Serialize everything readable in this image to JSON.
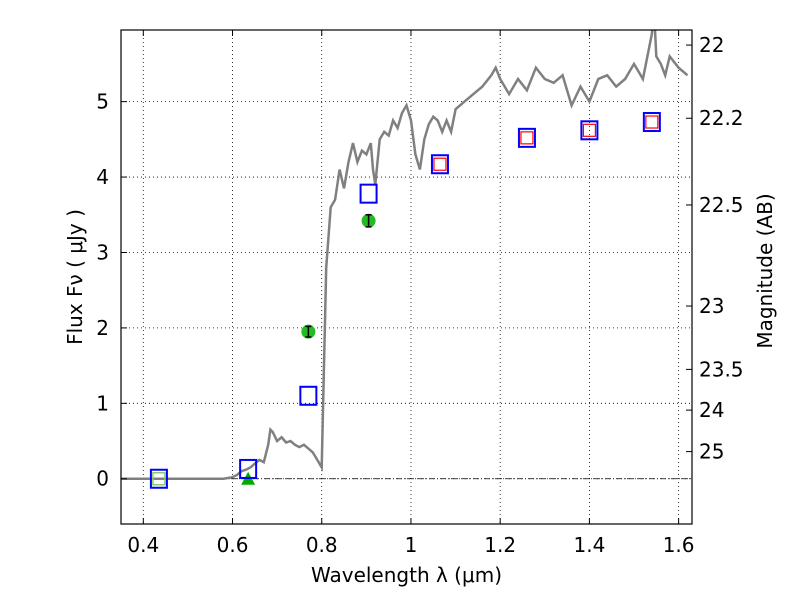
{
  "chart_data": {
    "type": "scatter",
    "xlabel": "Wavelength  λ (μm)",
    "ylabel_left": "Flux  Fν  ( μJy )",
    "ylabel_right": "Magnitude (AB)",
    "xlim": [
      0.35,
      1.63
    ],
    "ylim": [
      -0.6,
      5.95
    ],
    "grid": true,
    "x_ticks": [
      0.4,
      0.6,
      0.8,
      1.0,
      1.2,
      1.4,
      1.6
    ],
    "x_tick_labels": [
      "0.4",
      "0.6",
      "0.8",
      "1",
      "1.2",
      "1.4",
      "1.6"
    ],
    "y_ticks": [
      0,
      1,
      2,
      3,
      4,
      5
    ],
    "y_tick_labels": [
      "0",
      "1",
      "2",
      "3",
      "4",
      "5"
    ],
    "right_ticks": [
      {
        "label": "22",
        "flux": 5.75
      },
      {
        "label": "22.2",
        "flux": 4.78
      },
      {
        "label": "22.5",
        "flux": 3.63
      },
      {
        "label": "23",
        "flux": 2.29
      },
      {
        "label": "23.5",
        "flux": 1.45
      },
      {
        "label": "24",
        "flux": 0.91
      },
      {
        "label": "25",
        "flux": 0.36
      }
    ],
    "series": [
      {
        "kind": "line",
        "color": "#808080",
        "x": [
          0.35,
          0.4,
          0.45,
          0.5,
          0.55,
          0.58,
          0.6,
          0.61,
          0.62,
          0.63,
          0.64,
          0.65,
          0.66,
          0.67,
          0.68,
          0.685,
          0.69,
          0.7,
          0.71,
          0.72,
          0.73,
          0.74,
          0.75,
          0.76,
          0.77,
          0.78,
          0.79,
          0.8,
          0.805,
          0.81,
          0.82,
          0.83,
          0.84,
          0.85,
          0.86,
          0.87,
          0.88,
          0.89,
          0.9,
          0.91,
          0.915,
          0.92,
          0.93,
          0.94,
          0.95,
          0.96,
          0.97,
          0.98,
          0.99,
          1.0,
          1.01,
          1.02,
          1.03,
          1.04,
          1.05,
          1.06,
          1.07,
          1.08,
          1.09,
          1.1,
          1.12,
          1.14,
          1.16,
          1.18,
          1.19,
          1.2,
          1.22,
          1.24,
          1.26,
          1.28,
          1.3,
          1.32,
          1.34,
          1.36,
          1.38,
          1.4,
          1.42,
          1.44,
          1.46,
          1.48,
          1.5,
          1.52,
          1.53,
          1.54,
          1.545,
          1.55,
          1.56,
          1.57,
          1.58,
          1.6,
          1.62
        ],
        "y": [
          0.0,
          0.0,
          0.0,
          0.0,
          0.0,
          0.0,
          0.02,
          0.05,
          0.1,
          0.12,
          0.15,
          0.2,
          0.25,
          0.22,
          0.45,
          0.65,
          0.62,
          0.5,
          0.55,
          0.48,
          0.5,
          0.45,
          0.42,
          0.45,
          0.4,
          0.35,
          0.25,
          0.15,
          1.5,
          2.8,
          3.6,
          3.7,
          4.1,
          3.85,
          4.2,
          4.45,
          4.2,
          4.35,
          4.3,
          4.45,
          4.1,
          3.9,
          4.5,
          4.6,
          4.55,
          4.75,
          4.65,
          4.85,
          4.95,
          4.75,
          4.3,
          4.1,
          4.5,
          4.7,
          4.8,
          4.75,
          4.6,
          4.75,
          4.6,
          4.9,
          5.0,
          5.1,
          5.2,
          5.35,
          5.45,
          5.3,
          5.1,
          5.3,
          5.15,
          5.45,
          5.3,
          5.25,
          5.35,
          4.95,
          5.2,
          5.0,
          5.3,
          5.35,
          5.2,
          5.3,
          5.5,
          5.3,
          5.6,
          5.9,
          6.2,
          5.6,
          5.5,
          5.35,
          5.6,
          5.45,
          5.35
        ]
      },
      {
        "kind": "blue-squares",
        "color": "#0000ff",
        "x": [
          0.435,
          0.635,
          0.77,
          0.905,
          1.065,
          1.26,
          1.4,
          1.54
        ],
        "y": [
          0.0,
          0.13,
          1.1,
          3.78,
          4.17,
          4.52,
          4.62,
          4.73
        ]
      },
      {
        "kind": "red-squares",
        "color": "#ff0000",
        "x": [
          1.065,
          1.26,
          1.4,
          1.54
        ],
        "y": [
          4.17,
          4.52,
          4.62,
          4.73
        ]
      },
      {
        "kind": "green-points",
        "color": "#22bb22",
        "points": [
          {
            "x": 0.77,
            "y": 1.95,
            "err": 0.07
          },
          {
            "x": 0.905,
            "y": 3.42,
            "err": 0.08
          }
        ]
      },
      {
        "kind": "green-triangle",
        "color": "#00aa00",
        "x": [
          0.635
        ],
        "y": [
          0.0
        ]
      },
      {
        "kind": "green-light-square",
        "color": "#88cc66",
        "x": [
          0.435
        ],
        "y": [
          0.0
        ]
      }
    ]
  }
}
